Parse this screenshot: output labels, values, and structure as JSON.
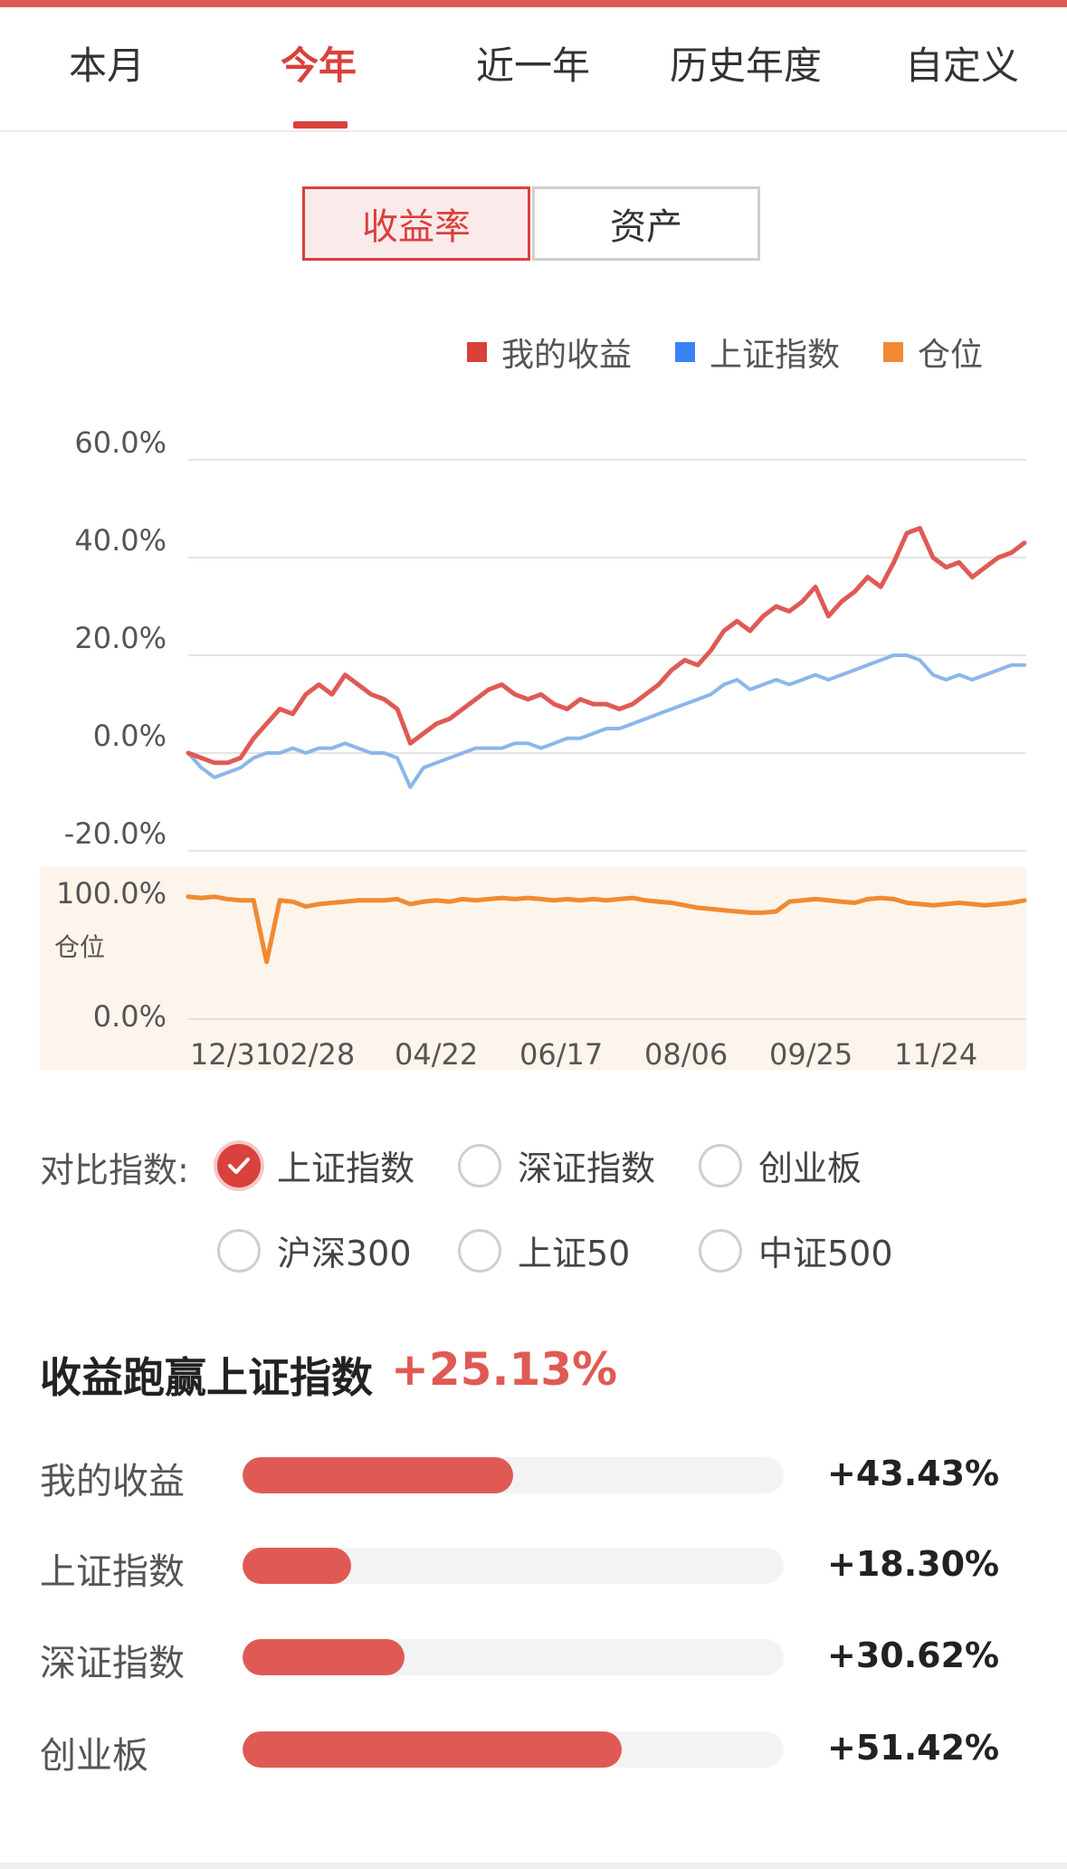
{
  "tabs": [
    "本月",
    "今年",
    "近一年",
    "历史年度",
    "自定义"
  ],
  "active_tab": "今年",
  "toggle": {
    "selected": "收益率",
    "other": "资产"
  },
  "legend": [
    {
      "label": "我的收益",
      "color": "#d9413c"
    },
    {
      "label": "上证指数",
      "color": "#3b82f6"
    },
    {
      "label": "仓位",
      "color": "#f08a32"
    }
  ],
  "chart_data": {
    "type": "line",
    "x_tick_labels": [
      "12/31",
      "02/28",
      "04/22",
      "06/17",
      "08/06",
      "09/25",
      "11/24"
    ],
    "ylim": [
      -20,
      60
    ],
    "y_ticks": [
      "60.0%",
      "40.0%",
      "20.0%",
      "0.0%",
      "-20.0%"
    ],
    "series": [
      {
        "name": "我的收益",
        "color": "#e05a55",
        "values": [
          0,
          -1,
          -2,
          -2,
          -1,
          3,
          6,
          9,
          8,
          12,
          14,
          12,
          16,
          14,
          12,
          11,
          9,
          2,
          4,
          6,
          7,
          9,
          11,
          13,
          14,
          12,
          11,
          12,
          10,
          9,
          11,
          10,
          10,
          9,
          10,
          12,
          14,
          17,
          19,
          18,
          21,
          25,
          27,
          25,
          28,
          30,
          29,
          31,
          34,
          28,
          31,
          33,
          36,
          34,
          39,
          45,
          46,
          40,
          38,
          39,
          36,
          38,
          40,
          41,
          43
        ]
      },
      {
        "name": "上证指数",
        "color": "#8bb6ea",
        "values": [
          0,
          -3,
          -5,
          -4,
          -3,
          -1,
          0,
          0,
          1,
          0,
          1,
          1,
          2,
          1,
          0,
          0,
          -1,
          -7,
          -3,
          -2,
          -1,
          0,
          1,
          1,
          1,
          2,
          2,
          1,
          2,
          3,
          3,
          4,
          5,
          5,
          6,
          7,
          8,
          9,
          10,
          11,
          12,
          14,
          15,
          13,
          14,
          15,
          14,
          15,
          16,
          15,
          16,
          17,
          18,
          19,
          20,
          20,
          19,
          16,
          15,
          16,
          15,
          16,
          17,
          18,
          18
        ]
      },
      {
        "name": "仓位",
        "color": "#f08a32",
        "values": [
          98,
          97,
          98,
          96,
          95,
          95,
          45,
          95,
          94,
          90,
          92,
          93,
          94,
          95,
          95,
          95,
          96,
          92,
          94,
          95,
          94,
          96,
          95,
          96,
          97,
          96,
          97,
          96,
          95,
          96,
          95,
          96,
          95,
          96,
          97,
          95,
          94,
          93,
          91,
          89,
          88,
          87,
          86,
          85,
          85,
          86,
          94,
          95,
          96,
          95,
          94,
          93,
          96,
          97,
          96,
          93,
          92,
          91,
          92,
          93,
          92,
          91,
          92,
          93,
          95
        ]
      }
    ],
    "position_axis": {
      "label": "仓位",
      "ticks": [
        "100.0%",
        "0.0%"
      ]
    },
    "grid": true
  },
  "compare": {
    "label": "对比指数:",
    "options": [
      {
        "label": "上证指数",
        "checked": true
      },
      {
        "label": "深证指数",
        "checked": false
      },
      {
        "label": "创业板",
        "checked": false
      },
      {
        "label": "沪深300",
        "checked": false
      },
      {
        "label": "上证50",
        "checked": false
      },
      {
        "label": "中证500",
        "checked": false
      }
    ]
  },
  "beat": {
    "title": "收益跑赢上证指数",
    "value": "+25.13%"
  },
  "bars": [
    {
      "label": "我的收益",
      "value": "+43.43%",
      "fraction": 0.5
    },
    {
      "label": "上证指数",
      "value": "+18.30%",
      "fraction": 0.2
    },
    {
      "label": "深证指数",
      "value": "+30.62%",
      "fraction": 0.3
    },
    {
      "label": "创业板",
      "value": "+51.42%",
      "fraction": 0.7
    }
  ]
}
